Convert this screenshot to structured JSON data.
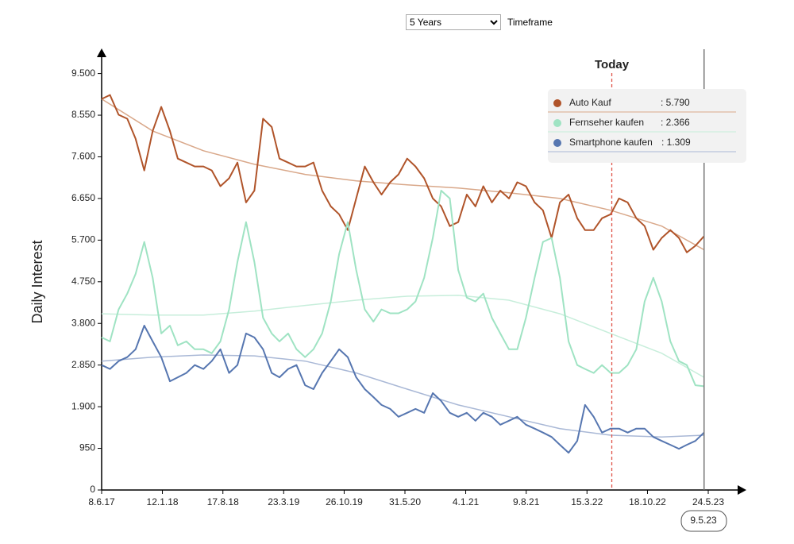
{
  "controls": {
    "timeframe_option": "5 Years",
    "timeframe_label": "Timeframe"
  },
  "chart_data": {
    "type": "line",
    "y_label": "Daily Interest",
    "ylim": [
      0,
      10000
    ],
    "yticks": [
      0,
      950,
      {
        "value": 1900,
        "label": "1.900"
      },
      {
        "value": 2850,
        "label": "2.850"
      },
      {
        "value": 3800,
        "label": "3.800"
      },
      {
        "value": 4750,
        "label": "4.750"
      },
      {
        "value": 5700,
        "label": "5.700"
      },
      {
        "value": 6650,
        "label": "6.650"
      },
      {
        "value": 7600,
        "label": "7.600"
      },
      {
        "value": 8550,
        "label": "8.550"
      },
      {
        "value": 9500,
        "label": "9.500"
      }
    ],
    "xlim": [
      "8.6.17",
      "24.5.23"
    ],
    "xticks": [
      "8.6.17",
      "12.1.18",
      "17.8.18",
      "23.3.19",
      "26.10.19",
      "31.5.20",
      "4.1.21",
      "9.8.21",
      "15.3.22",
      "18.10.22",
      "24.5.23"
    ],
    "x": [
      "8.6.17",
      "8.7.17",
      "8.8.17",
      "8.9.17",
      "8.10.17",
      "8.11.17",
      "8.12.17",
      "8.1.18",
      "8.2.18",
      "8.3.18",
      "8.4.18",
      "8.5.18",
      "8.6.18",
      "8.7.18",
      "8.8.18",
      "8.9.18",
      "8.10.18",
      "8.11.18",
      "8.12.18",
      "8.1.19",
      "8.2.19",
      "8.3.19",
      "8.4.19",
      "8.5.19",
      "8.6.19",
      "8.7.19",
      "8.8.19",
      "8.9.19",
      "8.10.19",
      "8.11.19",
      "8.12.19",
      "8.1.20",
      "8.2.20",
      "8.3.20",
      "8.4.20",
      "8.5.20",
      "8.6.20",
      "8.7.20",
      "8.8.20",
      "8.9.20",
      "8.10.20",
      "8.11.20",
      "8.12.20",
      "8.1.21",
      "8.2.21",
      "8.3.21",
      "8.4.21",
      "8.5.21",
      "8.6.21",
      "8.7.21",
      "8.8.21",
      "8.9.21",
      "8.10.21",
      "8.11.21",
      "8.12.21",
      "8.1.22",
      "8.2.22",
      "8.3.22",
      "8.4.22",
      "8.5.22",
      "8.6.22",
      "8.7.22",
      "8.8.22",
      "8.9.22",
      "8.10.22",
      "8.11.22",
      "8.12.22",
      "8.1.23",
      "8.2.23",
      "8.3.23",
      "8.4.23",
      "9.5.23"
    ],
    "trend_x": [
      "8.6.17",
      "8.12.17",
      "8.6.18",
      "8.12.18",
      "8.6.19",
      "8.12.19",
      "8.6.20",
      "8.12.20",
      "8.6.21",
      "8.12.21",
      "8.6.22",
      "8.12.22",
      "9.5.23"
    ],
    "series": [
      {
        "name": "Auto Kauf",
        "color": "#b0542a",
        "trend_color": "#d9a88a",
        "values": [
          8920,
          9010,
          8560,
          8470,
          8010,
          7290,
          8190,
          8740,
          8190,
          7560,
          7470,
          7380,
          7380,
          7290,
          6930,
          7110,
          7470,
          6560,
          6830,
          8470,
          8280,
          7560,
          7470,
          7380,
          7380,
          7470,
          6830,
          6470,
          6290,
          5930,
          6650,
          7380,
          7020,
          6740,
          7020,
          7200,
          7560,
          7380,
          7110,
          6650,
          6470,
          6020,
          6110,
          6740,
          6470,
          6930,
          6560,
          6830,
          6650,
          7020,
          6930,
          6560,
          6380,
          5750,
          6560,
          6740,
          6200,
          5930,
          5930,
          6200,
          6290,
          6650,
          6560,
          6200,
          6020,
          5480,
          5750,
          5930,
          5750,
          5420,
          5570,
          5790
        ],
        "trend": [
          8920,
          8190,
          7740,
          7430,
          7200,
          7050,
          6960,
          6890,
          6780,
          6650,
          6380,
          6020,
          5480
        ],
        "tooltip_label": ": 5.790"
      },
      {
        "name": "Fernseher kaufen",
        "color": "#9fe3c3",
        "trend_color": "#c7eedb",
        "values": [
          3480,
          3390,
          4120,
          4480,
          4930,
          5660,
          4840,
          3570,
          3750,
          3300,
          3390,
          3210,
          3210,
          3120,
          3390,
          4120,
          5200,
          6110,
          5200,
          3930,
          3570,
          3390,
          3570,
          3210,
          3030,
          3210,
          3570,
          4300,
          5380,
          6110,
          5020,
          4120,
          3840,
          4120,
          4030,
          4030,
          4120,
          4300,
          4840,
          5750,
          6830,
          6650,
          5020,
          4390,
          4300,
          4480,
          3930,
          3570,
          3210,
          3210,
          3930,
          4840,
          5660,
          5750,
          4840,
          3390,
          2850,
          2760,
          2670,
          2850,
          2670,
          2670,
          2850,
          3210,
          4300,
          4840,
          4300,
          3390,
          2940,
          2850,
          2390,
          2366
        ],
        "trend": [
          4020,
          3990,
          3990,
          4080,
          4210,
          4330,
          4420,
          4440,
          4330,
          4020,
          3570,
          3120,
          2570
        ],
        "tooltip_label": ": 2.366"
      },
      {
        "name": "Smartphone kaufen",
        "color": "#5676b0",
        "trend_color": "#a9b8d6",
        "values": [
          2850,
          2760,
          2940,
          3030,
          3210,
          3750,
          3390,
          3030,
          2480,
          2570,
          2670,
          2850,
          2760,
          2940,
          3210,
          2670,
          2850,
          3570,
          3480,
          3210,
          2670,
          2570,
          2760,
          2850,
          2390,
          2300,
          2670,
          2940,
          3210,
          3030,
          2570,
          2300,
          2120,
          1940,
          1850,
          1670,
          1760,
          1850,
          1760,
          2210,
          2030,
          1760,
          1670,
          1760,
          1580,
          1760,
          1670,
          1490,
          1580,
          1670,
          1490,
          1400,
          1310,
          1210,
          1030,
          850,
          1120,
          1940,
          1670,
          1310,
          1400,
          1400,
          1310,
          1400,
          1400,
          1210,
          1120,
          1030,
          940,
          1030,
          1120,
          1309
        ],
        "trend": [
          2940,
          3030,
          3080,
          3060,
          2940,
          2670,
          2300,
          1940,
          1670,
          1400,
          1250,
          1210,
          1250
        ],
        "tooltip_label": ": 1.309"
      }
    ],
    "today": {
      "label": "Today",
      "x": "12.6.22",
      "color": "#e0554a"
    },
    "cursor": {
      "label": "9.5.23"
    }
  }
}
